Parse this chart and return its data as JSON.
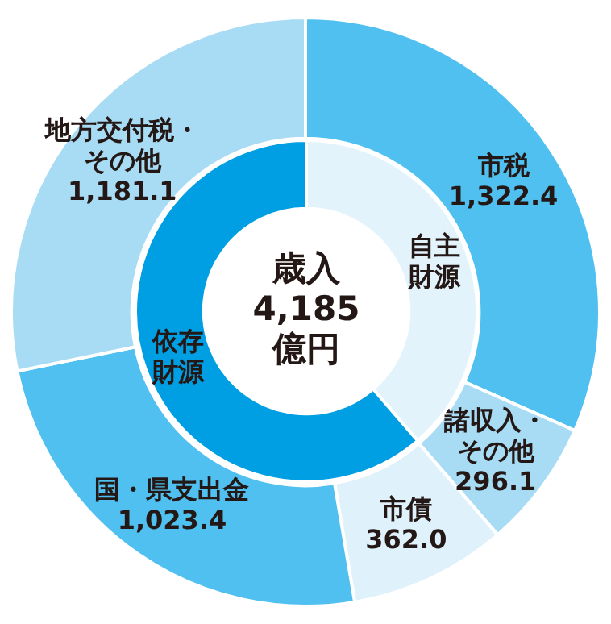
{
  "chart_data": [
    {
      "type": "donut",
      "categories": [
        "市税",
        "諸収入・その他",
        "市債",
        "国・県支出金",
        "地方交付税・その他"
      ],
      "values": [
        1322.4,
        296.1,
        362.0,
        1023.4,
        1181.1
      ],
      "colors": [
        "#4fc0ef",
        "#a8dcf5",
        "#dff1fb",
        "#4fc0ef",
        "#a8dcf5"
      ],
      "value_labels": [
        "1,322.4",
        "296.1",
        "362.0",
        "1,023.4",
        "1,181.1"
      ]
    },
    {
      "type": "donut",
      "title": "歳入\n4,185\n億円",
      "categories": [
        "自主財源",
        "依存財源"
      ],
      "values": [
        38.7,
        61.3
      ],
      "colors": [
        "#e3f3fc",
        "#009fe3"
      ]
    }
  ]
}
